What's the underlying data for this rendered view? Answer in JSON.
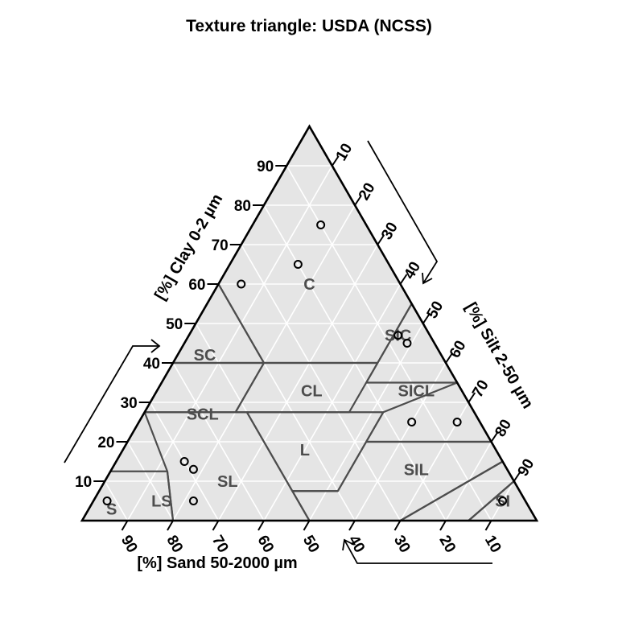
{
  "chart_data": {
    "type": "scatter",
    "subtype": "ternary-texture-triangle",
    "title": "Texture triangle: USDA (NCSS)",
    "axes": {
      "clay": {
        "label": "[%] Clay 0-2 µm",
        "ticks": [
          10,
          20,
          30,
          40,
          50,
          60,
          70,
          80,
          90
        ]
      },
      "silt": {
        "label": "[%] Silt 2-50 µm",
        "ticks": [
          10,
          20,
          30,
          40,
          50,
          60,
          70,
          80,
          90
        ]
      },
      "sand": {
        "label": "[%] Sand 50-2000 µm",
        "ticks": [
          90,
          80,
          70,
          60,
          50,
          40,
          30,
          20,
          10
        ]
      }
    },
    "grid": true,
    "background_color": "#e5e5e5",
    "boundary_color": "#4d4d4d",
    "classes": [
      {
        "label": "S",
        "vertices": [
          [
            0,
            100
          ],
          [
            10,
            90
          ],
          [
            0,
            85
          ]
        ]
      },
      {
        "label": "LS",
        "vertices": [
          [
            0,
            85
          ],
          [
            10,
            90
          ],
          [
            15,
            85
          ],
          [
            0,
            70
          ]
        ]
      },
      {
        "label": "SL",
        "vertices": [
          [
            0,
            70
          ],
          [
            15,
            85
          ],
          [
            20,
            80
          ],
          [
            20,
            52.5
          ],
          [
            7.5,
            52.5
          ],
          [
            7.5,
            42.5
          ],
          [
            0,
            50
          ]
        ]
      },
      {
        "label": "SCL",
        "vertices": [
          [
            20,
            80
          ],
          [
            35,
            65
          ],
          [
            27.5,
            52.5
          ],
          [
            20,
            52.5
          ]
        ]
      },
      {
        "label": "SC",
        "vertices": [
          [
            35,
            65
          ],
          [
            55,
            45
          ],
          [
            35,
            45
          ]
        ]
      },
      {
        "label": "C",
        "vertices": [
          [
            100,
            0
          ],
          [
            55,
            45
          ],
          [
            40,
            45
          ],
          [
            40,
            20
          ],
          [
            60,
            0
          ]
        ]
      },
      {
        "label": "CL",
        "vertices": [
          [
            40,
            45
          ],
          [
            27.5,
            45
          ],
          [
            27.5,
            20
          ],
          [
            40,
            20
          ]
        ]
      },
      {
        "label": "L",
        "vertices": [
          [
            27.5,
            52.5
          ],
          [
            27.5,
            22.5
          ],
          [
            7.5,
            42.5
          ],
          [
            7.5,
            52.5
          ]
        ]
      },
      {
        "label": "SIL",
        "vertices": [
          [
            0,
            50
          ],
          [
            0,
            20
          ],
          [
            12.5,
            12.5
          ],
          [
            27.5,
            0
          ],
          [
            27.5,
            22.5
          ]
        ]
      },
      {
        "label": "SICL",
        "vertices": [
          [
            40,
            20
          ],
          [
            40,
            0
          ],
          [
            27.5,
            0
          ],
          [
            27.5,
            20
          ]
        ]
      },
      {
        "label": "SIC",
        "vertices": [
          [
            60,
            0
          ],
          [
            40,
            0
          ],
          [
            40,
            20
          ]
        ]
      },
      {
        "label": "SI",
        "vertices": [
          [
            12.5,
            0
          ],
          [
            0,
            0
          ],
          [
            0,
            20
          ],
          [
            12.5,
            12.5
          ]
        ]
      }
    ],
    "class_label_positions": [
      {
        "label": "C",
        "clay": 60,
        "sand": 20
      },
      {
        "label": "SC",
        "clay": 42,
        "sand": 52
      },
      {
        "label": "SCL",
        "clay": 27,
        "sand": 60
      },
      {
        "label": "CL",
        "clay": 33,
        "sand": 33
      },
      {
        "label": "SIC",
        "clay": 47,
        "sand": 7
      },
      {
        "label": "SICL",
        "clay": 33,
        "sand": 10
      },
      {
        "label": "L",
        "clay": 18,
        "sand": 42
      },
      {
        "label": "SIL",
        "clay": 13,
        "sand": 20
      },
      {
        "label": "SL",
        "clay": 10,
        "sand": 63
      },
      {
        "label": "LS",
        "clay": 5,
        "sand": 80
      },
      {
        "label": "S",
        "clay": 3,
        "sand": 92
      },
      {
        "label": "SI",
        "clay": 5,
        "sand": 5
      }
    ],
    "points": [
      {
        "clay": 75,
        "silt": 15,
        "sand": 10
      },
      {
        "clay": 65,
        "silt": 15,
        "sand": 20
      },
      {
        "clay": 60,
        "silt": 5,
        "sand": 35
      },
      {
        "clay": 47,
        "silt": 46,
        "sand": 7
      },
      {
        "clay": 45,
        "silt": 49,
        "sand": 6
      },
      {
        "clay": 25,
        "silt": 60,
        "sand": 15
      },
      {
        "clay": 25,
        "silt": 70,
        "sand": 5
      },
      {
        "clay": 15,
        "silt": 15,
        "sand": 70
      },
      {
        "clay": 13,
        "silt": 18,
        "sand": 69
      },
      {
        "clay": 5,
        "silt": 22,
        "sand": 73
      },
      {
        "clay": 5,
        "silt": 3,
        "sand": 92
      },
      {
        "clay": 5,
        "silt": 90,
        "sand": 5
      }
    ]
  }
}
